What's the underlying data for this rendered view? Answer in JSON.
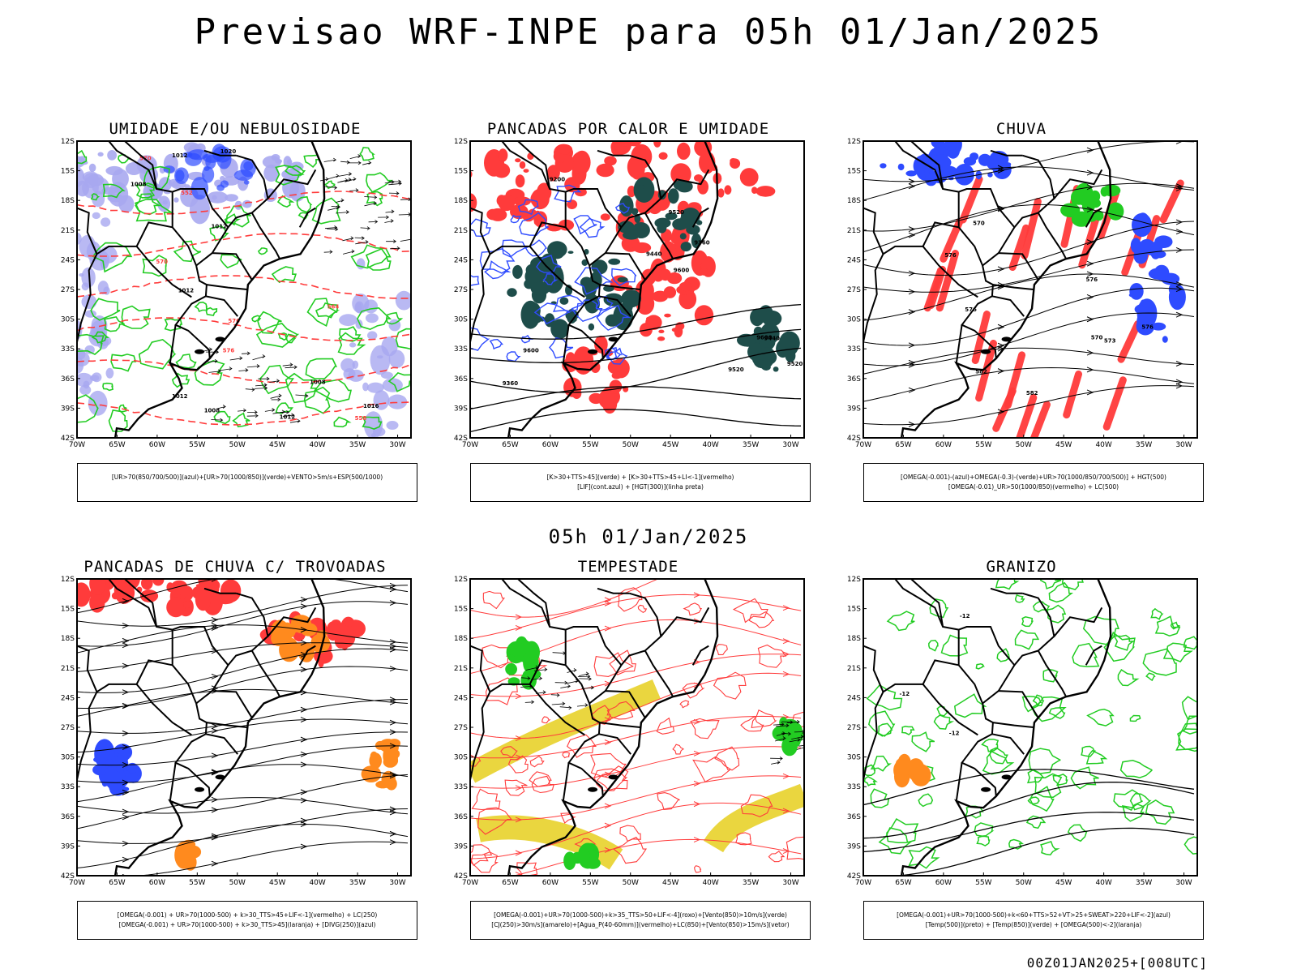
{
  "title": "Previsao WRF-INPE  para 05h 01/Jan/2025",
  "subtitle": "05h 01/Jan/2025",
  "footer": "00Z01JAN2025+[008UTC]",
  "axes": {
    "lat": [
      "12S",
      "15S",
      "18S",
      "21S",
      "24S",
      "27S",
      "30S",
      "33S",
      "36S",
      "39S",
      "42S"
    ],
    "lon": [
      "70W",
      "65W",
      "60W",
      "55W",
      "50W",
      "45W",
      "40W",
      "35W",
      "30W"
    ]
  },
  "colors": {
    "blue": "#2e4bff",
    "green": "#22cc22",
    "red": "#ff3b3b",
    "teal": "#1e4d4a",
    "orange": "#ff8a1e",
    "yellow": "#e8d22a",
    "lavender": "#a8a8f0",
    "black": "#000000"
  },
  "panels": [
    {
      "title": "UMIDADE E/OU NEBULOSIDADE",
      "legend": [
        "[UR>70(850/700/500)](azul)+[UR>70(1000/850)](verde)+VENTO>5m/s+ESP(500/1000)"
      ],
      "contour_labels": [
        "1008",
        "1012",
        "1012",
        "1008",
        "1012",
        "1008",
        "1012",
        "1016",
        "1020",
        "1012",
        "576",
        "570",
        "570",
        "564",
        "558",
        "552",
        "576"
      ]
    },
    {
      "title": "PANCADAS POR CALOR E UMIDADE",
      "legend": [
        "[K>30+TTS>45](verde) + [K>30+TTS>45+LI<-1](vermelho)",
        "[LIF](cont.azul) + [HGT(300)](linha preta)"
      ],
      "contour_labels": [
        "9600",
        "9600",
        "9600",
        "9520",
        "9520",
        "9520",
        "9440",
        "9360",
        "9440",
        "9360",
        "9200"
      ]
    },
    {
      "title": "CHUVA",
      "legend": [
        "[OMEGA(-0.001)-(azul)+OMEGA(-0.3)-(verde)+UR>70(1000/850/700/500)] + HGT(500)",
        "[OMEGA(-0.01)_UR>50(1000/850)(vermelho) + LC(500)"
      ],
      "contour_labels": [
        "582",
        "582",
        "576",
        "576",
        "570",
        "570",
        "573",
        "576",
        "576"
      ]
    },
    {
      "title": "PANCADAS DE CHUVA C/ TROVOADAS",
      "legend": [
        "[OMEGA(-0.001) + UR>70(1000-500) + k>30_TTS>45+LIF<-1](vermelho) + LC(250)",
        "[OMEGA(-0.001) + UR>70(1000-500) + k>30_TTS>45](laranja) + [DIVG(250)](azul)"
      ],
      "contour_labels": []
    },
    {
      "title": "TEMPESTADE",
      "legend": [
        "[OMEGA(-0.001)+UR>70(1000-500)+k>35_TTS>50+LIF<-4](roxo)+[Vento(850)>10m/s](verde)",
        "[CJ(250)>30m/s](amarelo)+[Agua_P(40-60mm)](vermelho)+LC(850)+[Vento(850)>15m/s](vetor)"
      ],
      "contour_labels": []
    },
    {
      "title": "GRANIZO",
      "legend": [
        "[OMEGA(-0.001)+UR>70(1000-500)+k<60+TTS>52+VT>25+SWEAT>220+LIF<-2](azul)",
        "[Temp(500)](preto) + [Temp(850)](verde) + [OMEGA(500)<-2](laranja)"
      ],
      "contour_labels": [
        "-12",
        "-12",
        "-12"
      ]
    }
  ]
}
